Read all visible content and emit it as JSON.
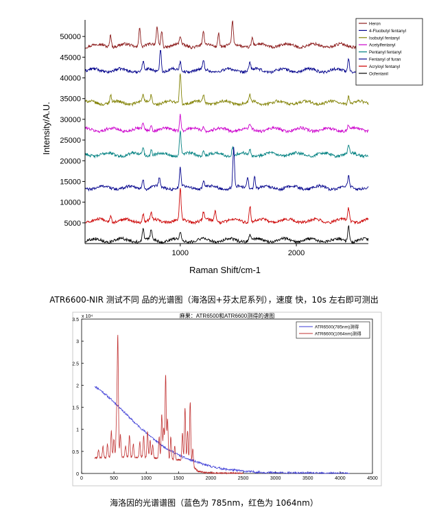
{
  "chart_data": [
    {
      "type": "line",
      "xlabel": "Raman Shift/cm-1",
      "ylabel": "Intensity/A.U.",
      "xlim": [
        180,
        2620
      ],
      "ylim": [
        0,
        54000
      ],
      "x_ticks": [
        "1000",
        "2000"
      ],
      "y_ticks": [
        "5000",
        "10000",
        "15000",
        "20000",
        "25000",
        "30000",
        "35000",
        "40000",
        "45000",
        "50000"
      ],
      "legend_position": "top-right",
      "series": [
        {
          "name": "Heron",
          "color": "#8b1a1a",
          "baseline": 47800,
          "peaks": [
            [
              400,
              3000
            ],
            [
              650,
              5000
            ],
            [
              800,
              4500
            ],
            [
              840,
              3800
            ],
            [
              1000,
              2000
            ],
            [
              1200,
              3000
            ],
            [
              1330,
              3500
            ],
            [
              1450,
              5500
            ],
            [
              1620,
              2000
            ]
          ]
        },
        {
          "name": "4-Fluobutyl fentanyl",
          "color": "#00008b",
          "baseline": 41800,
          "peaks": [
            [
              680,
              2000
            ],
            [
              830,
              5800
            ],
            [
              1000,
              2000
            ],
            [
              1200,
              2000
            ],
            [
              1600,
              2000
            ],
            [
              2450,
              3200
            ]
          ]
        },
        {
          "name": "Isobutyl fentanyl",
          "color": "#808000",
          "baseline": 34000,
          "peaks": [
            [
              400,
              1800
            ],
            [
              680,
              1800
            ],
            [
              750,
              2000
            ],
            [
              1000,
              7500
            ],
            [
              1200,
              1800
            ],
            [
              1600,
              1500
            ],
            [
              2450,
              1800
            ]
          ]
        },
        {
          "name": "Acetylfentanyl",
          "color": "#cc00cc",
          "baseline": 27500,
          "peaks": [
            [
              680,
              1500
            ],
            [
              750,
              1200
            ],
            [
              1000,
              4000
            ],
            [
              1200,
              1200
            ],
            [
              1600,
              1000
            ],
            [
              2450,
              1200
            ]
          ]
        },
        {
          "name": "Pentanyl fentanyl",
          "color": "#008080",
          "baseline": 21500,
          "peaks": [
            [
              680,
              2000
            ],
            [
              750,
              1500
            ],
            [
              1000,
              6000
            ],
            [
              1200,
              1500
            ],
            [
              1450,
              2000
            ],
            [
              1600,
              1500
            ],
            [
              2450,
              2000
            ]
          ]
        },
        {
          "name": "Fentanyl of furan",
          "color": "#00008b",
          "baseline": 13500,
          "peaks": [
            [
              680,
              2500
            ],
            [
              820,
              2000
            ],
            [
              1000,
              4500
            ],
            [
              1200,
              2000
            ],
            [
              1460,
              9500
            ],
            [
              1580,
              3000
            ],
            [
              1640,
              3000
            ],
            [
              2450,
              2500
            ]
          ]
        },
        {
          "name": "Acryloyl fentanyl",
          "color": "#cc0000",
          "baseline": 5500,
          "peaks": [
            [
              400,
              1500
            ],
            [
              680,
              2000
            ],
            [
              750,
              1800
            ],
            [
              1000,
              7500
            ],
            [
              1200,
              2000
            ],
            [
              1300,
              2500
            ],
            [
              1600,
              4000
            ],
            [
              2450,
              3000
            ]
          ]
        },
        {
          "name": "Ocfentanil",
          "color": "#000000",
          "baseline": 800,
          "peaks": [
            [
              680,
              2500
            ],
            [
              750,
              2500
            ],
            [
              1000,
              2000
            ],
            [
              1600,
              1500
            ],
            [
              2450,
              4000
            ]
          ]
        }
      ]
    },
    {
      "type": "line",
      "title": "麻果：ATR6500和ATR6600测得的谱图",
      "xlim": [
        0,
        4500
      ],
      "ylim": [
        0,
        35000
      ],
      "y_multiplier": "x 10⁴",
      "x_ticks": [
        "0",
        "500",
        "1000",
        "1500",
        "2000",
        "2500",
        "3000",
        "3500",
        "4000",
        "4500"
      ],
      "y_ticks": [
        "0",
        "0.5",
        "1",
        "1.5",
        "2",
        "2.5",
        "3",
        "3.5"
      ],
      "legend_position": "top-right",
      "series": [
        {
          "name": "ATR6500(785nm)测得",
          "color": "#3b3bd6",
          "x": [
            200,
            300,
            400,
            500,
            600,
            700,
            800,
            900,
            1000,
            1100,
            1200,
            1300,
            1400,
            1500,
            1600,
            1700,
            1800,
            1900,
            2000,
            2200,
            2400,
            2600,
            2800,
            3000,
            3200,
            3400,
            3600,
            3800,
            4000,
            4150
          ],
          "y": [
            19800,
            18800,
            17500,
            16200,
            14800,
            13300,
            11800,
            10500,
            9200,
            8000,
            6800,
            5800,
            5000,
            4200,
            3500,
            3000,
            2500,
            2000,
            1600,
            1000,
            700,
            400,
            250,
            150,
            100,
            60,
            40,
            30,
            20,
            10
          ]
        },
        {
          "name": "ATR6600(1064nm)测得",
          "color": "#c03030",
          "baseline": [
            [
              200,
              3500
            ],
            [
              600,
              3800
            ],
            [
              1000,
              3600
            ],
            [
              1400,
              3200
            ],
            [
              1600,
              3000
            ],
            [
              1700,
              2000
            ],
            [
              1800,
              500
            ],
            [
              1900,
              200
            ],
            [
              2100,
              50
            ],
            [
              2500,
              0
            ]
          ],
          "peaks": [
            [
              260,
              1800
            ],
            [
              330,
              2500
            ],
            [
              400,
              3000
            ],
            [
              460,
              6000
            ],
            [
              500,
              4000
            ],
            [
              540,
              8000
            ],
            [
              560,
              27000
            ],
            [
              600,
              5000
            ],
            [
              680,
              2500
            ],
            [
              740,
              5000
            ],
            [
              800,
              3000
            ],
            [
              900,
              3500
            ],
            [
              960,
              5000
            ],
            [
              1020,
              6000
            ],
            [
              1060,
              4000
            ],
            [
              1100,
              3000
            ],
            [
              1200,
              5000
            ],
            [
              1240,
              10000
            ],
            [
              1270,
              7000
            ],
            [
              1300,
              19000
            ],
            [
              1330,
              9000
            ],
            [
              1380,
              5000
            ],
            [
              1440,
              3000
            ],
            [
              1560,
              6000
            ],
            [
              1600,
              12000
            ],
            [
              1640,
              7000
            ],
            [
              1680,
              14000
            ],
            [
              1720,
              4000
            ]
          ]
        }
      ]
    }
  ],
  "captions": {
    "top": "ATR6600-NIR 测试不同  品的光谱图（海洛因+芬太尼系列），速度  快，10s 左右即可测出",
    "bottom": "海洛因的光谱谱图（蓝色为 785nm，红色为 1064nm）"
  }
}
